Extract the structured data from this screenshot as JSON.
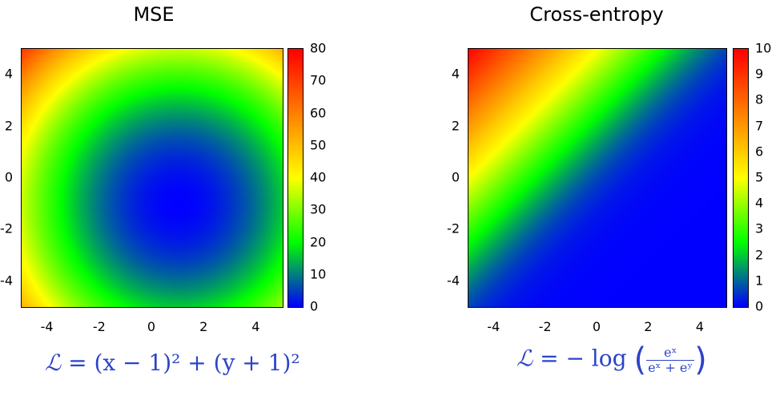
{
  "chart_data": [
    {
      "type": "heatmap",
      "title": "MSE",
      "function": "(x-1)^2 + (y+1)^2",
      "center": [
        1,
        -1
      ],
      "xlim": [
        -5,
        5
      ],
      "ylim": [
        -5,
        5
      ],
      "x_ticks": [
        "-4",
        "-2",
        "0",
        "2",
        "4"
      ],
      "y_ticks": [
        "4",
        "2",
        "0",
        "-2",
        "-4"
      ],
      "colorbar": {
        "range": [
          0,
          80
        ],
        "ticks": [
          "80",
          "70",
          "60",
          "50",
          "40",
          "30",
          "20",
          "10",
          "0"
        ]
      },
      "formula": {
        "lhs": "ℒ",
        "rhs": "= (x − 1)² + (y + 1)²"
      }
    },
    {
      "type": "heatmap",
      "title": "Cross-entropy",
      "function": "-log(e^x / (e^x + e^y))",
      "xlim": [
        -5,
        5
      ],
      "ylim": [
        -5,
        5
      ],
      "x_ticks": [
        "-4",
        "-2",
        "0",
        "2",
        "4"
      ],
      "y_ticks": [
        "4",
        "2",
        "0",
        "-2",
        "-4"
      ],
      "colorbar": {
        "range": [
          0,
          10
        ],
        "ticks": [
          "10",
          "9",
          "8",
          "7",
          "6",
          "5",
          "4",
          "3",
          "2",
          "1",
          "0"
        ]
      },
      "formula": {
        "lhs": "ℒ",
        "rhs": "= − log",
        "num": "eˣ",
        "den": "eˣ + eʸ"
      }
    }
  ],
  "colormap": [
    "#0000ff",
    "#00ff00",
    "#ffff00",
    "#ff8000",
    "#ff0000"
  ]
}
